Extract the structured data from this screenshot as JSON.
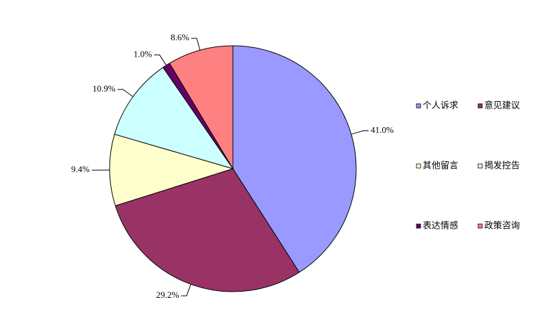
{
  "chart_data": {
    "type": "pie",
    "categories": [
      "个人诉求",
      "意见建议",
      "其他留言",
      "揭发控告",
      "表达情感",
      "政策咨询"
    ],
    "values": [
      41.0,
      29.2,
      9.4,
      10.9,
      1.0,
      8.6
    ],
    "value_labels": [
      "41.0%",
      "29.2%",
      "9.4%",
      "10.9%",
      "1.0%",
      "8.6%"
    ],
    "colors": [
      "#9999ff",
      "#993366",
      "#ffffcc",
      "#ccffff",
      "#660066",
      "#ff8080"
    ],
    "legend": "right"
  }
}
